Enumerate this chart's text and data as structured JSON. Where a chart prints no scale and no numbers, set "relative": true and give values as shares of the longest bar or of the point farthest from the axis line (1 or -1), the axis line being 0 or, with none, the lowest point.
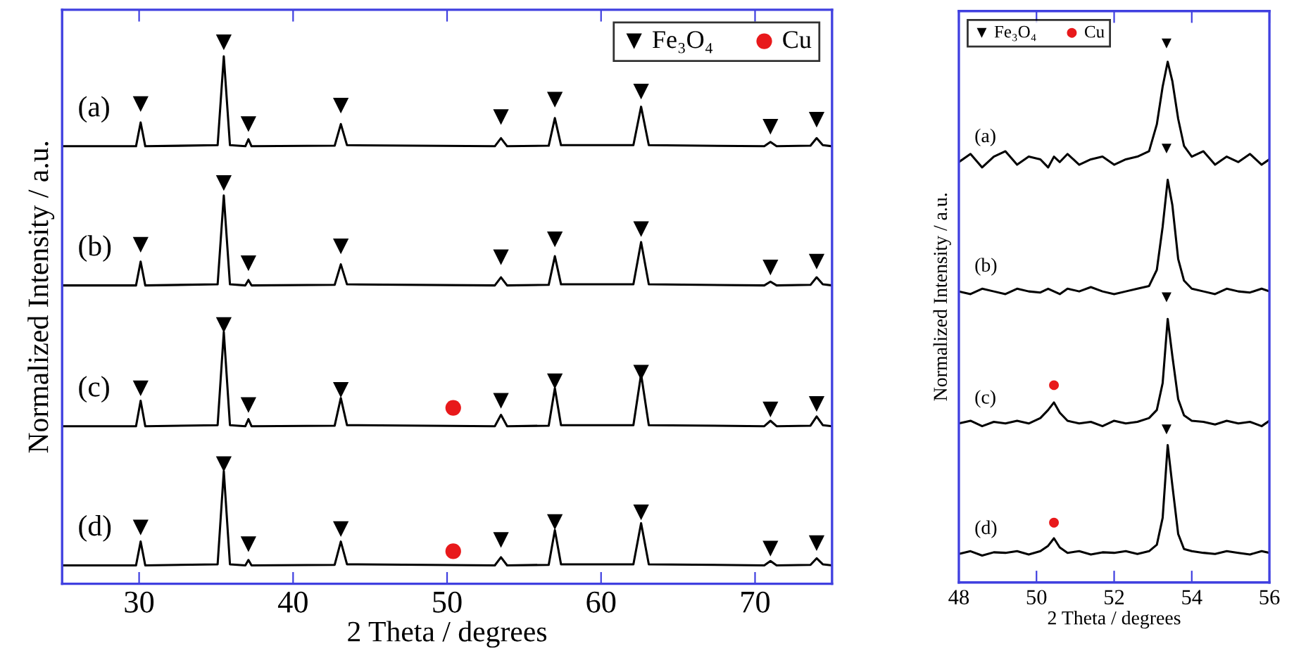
{
  "chart_data": [
    {
      "type": "line",
      "relative": true,
      "xlabel": "2 Theta / degrees",
      "ylabel": "Normalized Intensity / a.u.",
      "xlim": [
        25,
        75
      ],
      "xticks": [
        30,
        40,
        50,
        60,
        70
      ],
      "tick_labels": "x",
      "grid": false,
      "legend": "top right",
      "line_style": "solid",
      "marker": "none",
      "series": [
        {
          "name": "(a)",
          "color": "#000000",
          "x": [
            25,
            29.8,
            30.1,
            30.4,
            35.1,
            35.5,
            35.9,
            36.9,
            37.1,
            37.3,
            42.7,
            43.1,
            43.5,
            53.1,
            53.5,
            53.9,
            56.6,
            57.0,
            57.4,
            62.1,
            62.6,
            63.1,
            70.6,
            71.0,
            71.4,
            73.6,
            74.0,
            74.4,
            75
          ],
          "values": [
            0.808,
            0.808,
            0.852,
            0.808,
            0.81,
            0.974,
            0.81,
            0.808,
            0.821,
            0.808,
            0.809,
            0.849,
            0.81,
            0.808,
            0.823,
            0.808,
            0.809,
            0.86,
            0.81,
            0.81,
            0.881,
            0.81,
            0.808,
            0.816,
            0.808,
            0.809,
            0.823,
            0.81,
            0.808
          ]
        },
        {
          "name": "(b)",
          "color": "#000000",
          "x": [
            25,
            29.8,
            30.1,
            30.4,
            35.1,
            35.5,
            35.9,
            36.9,
            37.1,
            37.3,
            42.7,
            43.1,
            43.5,
            53.1,
            53.5,
            53.9,
            56.6,
            57.0,
            57.4,
            62.1,
            62.6,
            63.1,
            70.6,
            71.0,
            71.4,
            73.6,
            74.0,
            74.4,
            75
          ],
          "values": [
            0.551,
            0.551,
            0.595,
            0.551,
            0.553,
            0.717,
            0.553,
            0.551,
            0.561,
            0.551,
            0.552,
            0.59,
            0.553,
            0.551,
            0.566,
            0.551,
            0.552,
            0.605,
            0.553,
            0.553,
            0.631,
            0.553,
            0.551,
            0.558,
            0.551,
            0.552,
            0.566,
            0.553,
            0.551
          ]
        },
        {
          "name": "(c)",
          "color": "#000000",
          "x": [
            25,
            29.8,
            30.1,
            30.4,
            35.1,
            35.5,
            35.9,
            36.9,
            37.1,
            37.3,
            42.7,
            43.1,
            43.5,
            53.1,
            53.5,
            53.9,
            56.6,
            57.0,
            57.4,
            62.1,
            62.6,
            63.1,
            70.6,
            71.0,
            71.4,
            73.6,
            74.0,
            74.4,
            75
          ],
          "values": [
            0.291,
            0.291,
            0.338,
            0.291,
            0.293,
            0.465,
            0.293,
            0.291,
            0.304,
            0.291,
            0.292,
            0.343,
            0.293,
            0.291,
            0.312,
            0.291,
            0.292,
            0.361,
            0.293,
            0.293,
            0.387,
            0.293,
            0.291,
            0.301,
            0.291,
            0.292,
            0.309,
            0.293,
            0.291
          ]
        },
        {
          "name": "(d)",
          "color": "#000000",
          "x": [
            25,
            29.8,
            30.1,
            30.4,
            35.1,
            35.5,
            35.9,
            36.9,
            37.1,
            37.3,
            42.7,
            43.1,
            43.5,
            53.1,
            53.5,
            53.9,
            56.6,
            57.0,
            57.4,
            62.1,
            62.6,
            63.1,
            70.6,
            71.0,
            71.4,
            73.6,
            74.0,
            74.4,
            75
          ],
          "values": [
            0.034,
            0.034,
            0.078,
            0.034,
            0.036,
            0.208,
            0.036,
            0.034,
            0.044,
            0.034,
            0.035,
            0.078,
            0.036,
            0.034,
            0.049,
            0.034,
            0.035,
            0.099,
            0.036,
            0.036,
            0.112,
            0.036,
            0.034,
            0.042,
            0.034,
            0.035,
            0.047,
            0.036,
            0.034
          ]
        },
        {
          "type": "scatter",
          "name": "Fe₃O₄",
          "marker": "triangle",
          "color": "#000000",
          "x": [
            30.1,
            35.5,
            37.1,
            43.1,
            53.5,
            57.0,
            62.6,
            71.0,
            74.0,
            30.1,
            35.5,
            37.1,
            43.1,
            53.5,
            57.0,
            62.6,
            71.0,
            74.0,
            30.1,
            35.5,
            37.1,
            43.1,
            53.5,
            57.0,
            62.6,
            71.0,
            74.0,
            30.1,
            35.5,
            37.1,
            43.1,
            53.5,
            57.0,
            62.6,
            71.0,
            74.0
          ],
          "values": [
            0.886,
            1.0,
            0.849,
            0.883,
            0.862,
            0.894,
            0.909,
            0.844,
            0.857,
            0.626,
            0.74,
            0.592,
            0.623,
            0.603,
            0.636,
            0.655,
            0.584,
            0.595,
            0.361,
            0.478,
            0.33,
            0.358,
            0.338,
            0.374,
            0.39,
            0.322,
            0.332,
            0.104,
            0.221,
            0.073,
            0.101,
            0.081,
            0.114,
            0.132,
            0.065,
            0.075
          ]
        },
        {
          "type": "scatter",
          "name": "Cu",
          "marker": "circle",
          "color": "#e8191b",
          "x": [
            50.4,
            50.4
          ],
          "values": [
            0.325,
            0.06
          ]
        }
      ]
    },
    {
      "type": "line",
      "relative": true,
      "xlabel": "2 Theta / degrees",
      "ylabel": "Normalized Intensity / a.u.",
      "xlim": [
        48,
        56
      ],
      "xticks": [
        48,
        50,
        52,
        54,
        56
      ],
      "tick_labels": "x",
      "grid": false,
      "legend": "top left",
      "line_style": "solid",
      "marker": "none",
      "series": [
        {
          "name": "(a)",
          "color": "#000000",
          "x": [
            48,
            48.3,
            48.6,
            48.9,
            49.2,
            49.5,
            49.8,
            50.1,
            50.3,
            50.45,
            50.6,
            50.8,
            51.1,
            51.4,
            51.7,
            52.0,
            52.3,
            52.6,
            52.9,
            53.1,
            53.25,
            53.38,
            53.5,
            53.65,
            53.8,
            54.0,
            54.3,
            54.6,
            54.9,
            55.2,
            55.5,
            55.8,
            56
          ],
          "values": [
            0.78,
            0.795,
            0.77,
            0.79,
            0.8,
            0.775,
            0.79,
            0.785,
            0.77,
            0.79,
            0.78,
            0.795,
            0.775,
            0.785,
            0.79,
            0.775,
            0.785,
            0.79,
            0.8,
            0.85,
            0.92,
            0.966,
            0.93,
            0.86,
            0.81,
            0.79,
            0.8,
            0.775,
            0.79,
            0.78,
            0.795,
            0.775,
            0.785
          ]
        },
        {
          "name": "(b)",
          "color": "#000000",
          "x": [
            48,
            48.3,
            48.6,
            48.9,
            49.2,
            49.5,
            49.8,
            50.1,
            50.3,
            50.45,
            50.6,
            50.8,
            51.1,
            51.4,
            51.7,
            52.0,
            52.3,
            52.6,
            52.9,
            53.1,
            53.25,
            53.38,
            53.5,
            53.65,
            53.8,
            54.0,
            54.3,
            54.6,
            54.9,
            55.2,
            55.5,
            55.8,
            56
          ],
          "values": [
            0.54,
            0.535,
            0.545,
            0.54,
            0.535,
            0.545,
            0.54,
            0.538,
            0.545,
            0.54,
            0.535,
            0.545,
            0.54,
            0.548,
            0.54,
            0.535,
            0.54,
            0.545,
            0.55,
            0.58,
            0.66,
            0.747,
            0.7,
            0.6,
            0.56,
            0.545,
            0.54,
            0.535,
            0.545,
            0.54,
            0.538,
            0.545,
            0.54
          ]
        },
        {
          "name": "(c)",
          "color": "#000000",
          "x": [
            48,
            48.3,
            48.6,
            48.9,
            49.2,
            49.5,
            49.8,
            50.1,
            50.3,
            50.45,
            50.6,
            50.8,
            51.1,
            51.4,
            51.7,
            52.0,
            52.3,
            52.6,
            52.9,
            53.1,
            53.25,
            53.38,
            53.5,
            53.65,
            53.8,
            54.0,
            54.3,
            54.6,
            54.9,
            55.2,
            55.5,
            55.8,
            56
          ],
          "values": [
            0.295,
            0.3,
            0.29,
            0.298,
            0.295,
            0.3,
            0.295,
            0.305,
            0.32,
            0.334,
            0.315,
            0.3,
            0.295,
            0.298,
            0.29,
            0.3,
            0.295,
            0.298,
            0.305,
            0.32,
            0.37,
            0.489,
            0.42,
            0.34,
            0.31,
            0.3,
            0.298,
            0.293,
            0.3,
            0.295,
            0.298,
            0.29,
            0.3
          ]
        },
        {
          "name": "(d)",
          "color": "#000000",
          "x": [
            48,
            48.3,
            48.6,
            48.9,
            49.2,
            49.5,
            49.8,
            50.1,
            50.3,
            50.45,
            50.6,
            50.8,
            51.1,
            51.4,
            51.7,
            52.0,
            52.3,
            52.6,
            52.9,
            53.1,
            53.25,
            53.38,
            53.5,
            53.65,
            53.8,
            54.0,
            54.3,
            54.6,
            54.9,
            55.2,
            55.5,
            55.8,
            56
          ],
          "values": [
            0.053,
            0.058,
            0.05,
            0.056,
            0.055,
            0.058,
            0.052,
            0.058,
            0.068,
            0.082,
            0.065,
            0.055,
            0.058,
            0.052,
            0.056,
            0.055,
            0.058,
            0.053,
            0.058,
            0.07,
            0.12,
            0.255,
            0.18,
            0.09,
            0.062,
            0.058,
            0.055,
            0.053,
            0.058,
            0.055,
            0.052,
            0.058,
            0.055
          ]
        },
        {
          "type": "scatter",
          "name": "Fe₃O₄",
          "marker": "triangle",
          "color": "#000000",
          "x": [
            53.35,
            53.35,
            53.35,
            53.35
          ],
          "values": [
            1.0,
            0.805,
            0.529,
            0.284
          ]
        },
        {
          "type": "scatter",
          "name": "Cu",
          "marker": "circle",
          "color": "#e8191b",
          "x": [
            50.45,
            50.45
          ],
          "values": [
            0.366,
            0.111
          ]
        }
      ]
    }
  ]
}
